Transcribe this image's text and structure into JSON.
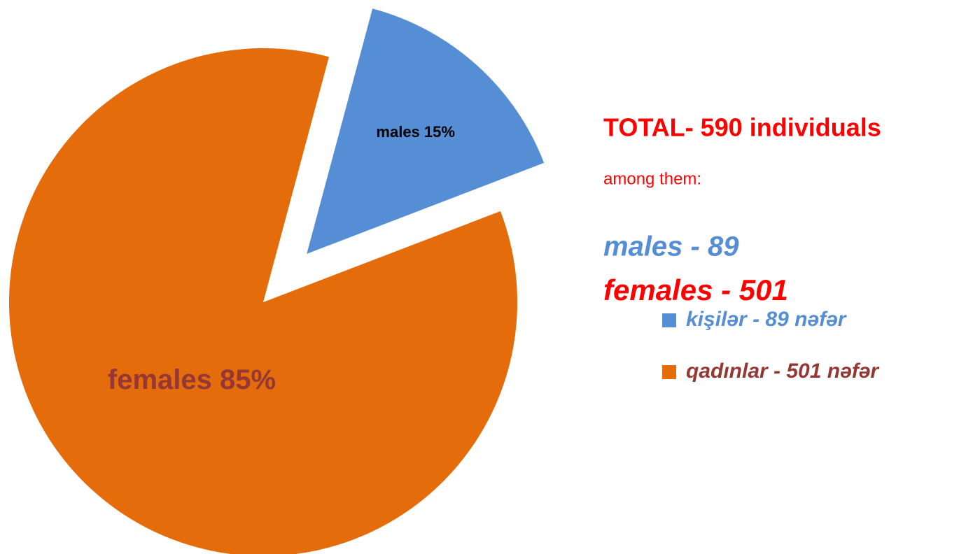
{
  "chart_data": {
    "type": "pie",
    "categories": [
      "kişilər - 89 nəfər",
      "qadınlar - 501 nəfər"
    ],
    "values": [
      15,
      85
    ],
    "value_labels": [
      "males 15%",
      "females 85%"
    ],
    "colors": [
      "#558ed5",
      "#e46c0a"
    ],
    "legend": "right",
    "annotations": [
      "TOTAL- 590 individuals",
      "among them:",
      "males - 89",
      "females - 501"
    ]
  }
}
